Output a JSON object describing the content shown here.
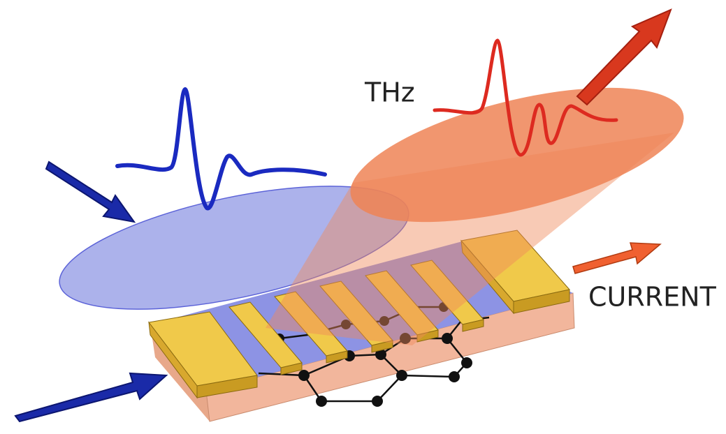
{
  "labels": {
    "thz": "THz",
    "current": "CURRENT"
  }
}
